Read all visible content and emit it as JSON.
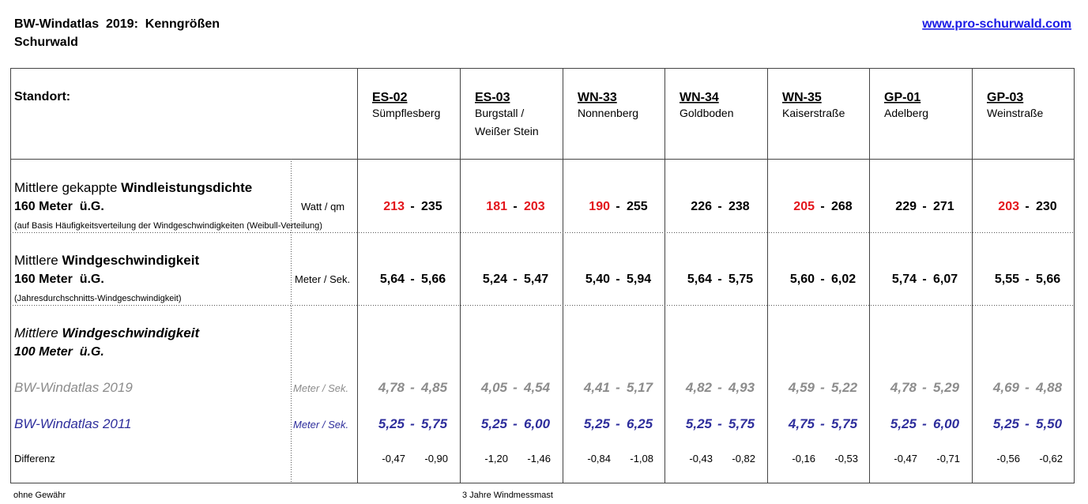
{
  "header": {
    "title_line1": "BW-Windatlas  2019:  Kenngrößen",
    "title_line2": "Schurwald",
    "link": "www.pro-schurwald.com"
  },
  "table": {
    "standort_label": "Standort:",
    "separator": "-",
    "sites": [
      {
        "code": "ES-02",
        "name": [
          "Sümpflesberg"
        ]
      },
      {
        "code": "ES-03",
        "name": [
          "Burgstall /",
          "Weißer Stein"
        ]
      },
      {
        "code": "WN-33",
        "name": [
          "Nonnenberg"
        ]
      },
      {
        "code": "WN-34",
        "name": [
          "Goldboden"
        ]
      },
      {
        "code": "WN-35",
        "name": [
          "Kaiserstraße"
        ]
      },
      {
        "code": "GP-01",
        "name": [
          "Adelberg"
        ]
      },
      {
        "code": "GP-03",
        "name": [
          "Weinstraße"
        ]
      }
    ],
    "power": {
      "label_normal": "Mittlere gekappte ",
      "label_bold": "Windleistungsdichte",
      "line2": "160 Meter  ü.G.",
      "note": "(auf Basis Häufigkeitsverteilung der Windgeschwindigkeiten (Weibull-Verteilung)",
      "unit": "Watt / qm",
      "values": [
        {
          "low": "213",
          "high": "235",
          "low_color": "#e3161c",
          "high_color": "#000000"
        },
        {
          "low": "181",
          "high": "203",
          "low_color": "#e3161c",
          "high_color": "#e3161c"
        },
        {
          "low": "190",
          "high": "255",
          "low_color": "#e3161c",
          "high_color": "#000000"
        },
        {
          "low": "226",
          "high": "238",
          "low_color": "#000000",
          "high_color": "#000000"
        },
        {
          "low": "205",
          "high": "268",
          "low_color": "#e3161c",
          "high_color": "#000000"
        },
        {
          "low": "229",
          "high": "271",
          "low_color": "#000000",
          "high_color": "#000000"
        },
        {
          "low": "203",
          "high": "230",
          "low_color": "#e3161c",
          "high_color": "#000000"
        }
      ]
    },
    "speed160": {
      "label_normal": "Mittlere ",
      "label_bold": "Windgeschwindigkeit",
      "line2": "160 Meter  ü.G.",
      "note": "(Jahresdurchschnitts-Windgeschwindigkeit)",
      "unit": "Meter / Sek.",
      "values": [
        {
          "low": "5,64",
          "high": "5,66"
        },
        {
          "low": "5,24",
          "high": "5,47"
        },
        {
          "low": "5,40",
          "high": "5,94"
        },
        {
          "low": "5,64",
          "high": "5,75"
        },
        {
          "low": "5,60",
          "high": "6,02"
        },
        {
          "low": "5,74",
          "high": "6,07"
        },
        {
          "low": "5,55",
          "high": "5,66"
        }
      ]
    },
    "speed100": {
      "label_normal": "Mittlere ",
      "label_bold": "Windgeschwindigkeit",
      "line2": "100 Meter  ü.G.",
      "atlas2019": {
        "label": "BW-Windatlas 2019",
        "unit": "Meter / Sek.",
        "color": "#8c8c8c",
        "values": [
          {
            "low": "4,78",
            "high": "4,85"
          },
          {
            "low": "4,05",
            "high": "4,54"
          },
          {
            "low": "4,41",
            "high": "5,17"
          },
          {
            "low": "4,82",
            "high": "4,93"
          },
          {
            "low": "4,59",
            "high": "5,22"
          },
          {
            "low": "4,78",
            "high": "5,29"
          },
          {
            "low": "4,69",
            "high": "4,88"
          }
        ]
      },
      "atlas2011": {
        "label": "BW-Windatlas 2011",
        "unit": "Meter / Sek.",
        "color": "#2e2e9c",
        "values": [
          {
            "low": "5,25",
            "high": "5,75"
          },
          {
            "low": "5,25",
            "high": "6,00"
          },
          {
            "low": "5,25",
            "high": "6,25"
          },
          {
            "low": "5,25",
            "high": "5,75"
          },
          {
            "low": "4,75",
            "high": "5,75"
          },
          {
            "low": "5,25",
            "high": "6,00"
          },
          {
            "low": "5,25",
            "high": "5,50"
          }
        ]
      },
      "difference": {
        "label": "Differenz",
        "values": [
          {
            "low": "-0,47",
            "high": "-0,90"
          },
          {
            "low": "-1,20",
            "high": "-1,46"
          },
          {
            "low": "-0,84",
            "high": "-1,08"
          },
          {
            "low": "-0,43",
            "high": "-0,82"
          },
          {
            "low": "-0,16",
            "high": "-0,53"
          },
          {
            "low": "-0,47",
            "high": "-0,71"
          },
          {
            "low": "-0,56",
            "high": "-0,62"
          }
        ]
      }
    }
  },
  "footer": {
    "note_left": "ohne Gewähr",
    "note_center": "3 Jahre Windmessmast"
  }
}
